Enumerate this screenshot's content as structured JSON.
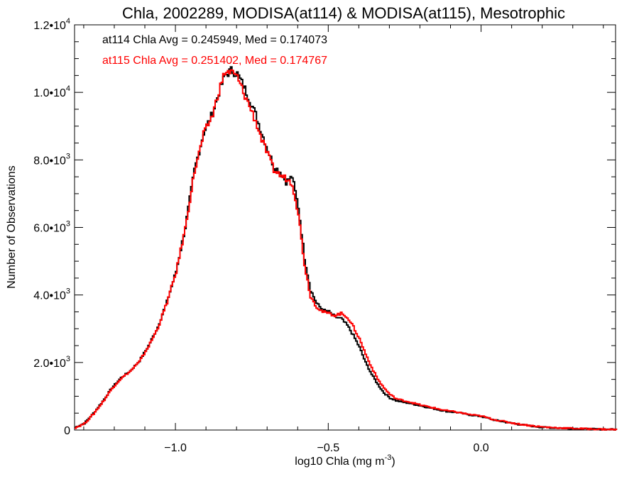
{
  "chart_data": {
    "type": "line",
    "title": "Chla, 2002289, MODISA(at114) & MODISA(at115), Mesotrophic",
    "xlabel": "log10 Chla (mg m",
    "xlabel_sup": "-3",
    "xlabel_close": ")",
    "ylabel": "Number of Observations",
    "xlim": [
      -1.33,
      0.44
    ],
    "ylim": [
      0,
      12000
    ],
    "xticks": [
      {
        "value": -1.0,
        "label": "−1.0"
      },
      {
        "value": -0.5,
        "label": "−0.5"
      },
      {
        "value": 0.0,
        "label": "0.0"
      }
    ],
    "yticks": [
      {
        "value": 0,
        "mant": "0",
        "exp": ""
      },
      {
        "value": 2000,
        "mant": "2.0•10",
        "exp": "3"
      },
      {
        "value": 4000,
        "mant": "4.0•10",
        "exp": "3"
      },
      {
        "value": 6000,
        "mant": "6.0•10",
        "exp": "3"
      },
      {
        "value": 8000,
        "mant": "8.0•10",
        "exp": "3"
      },
      {
        "value": 10000,
        "mant": "1.0•10",
        "exp": "4"
      },
      {
        "value": 12000,
        "mant": "1.2•10",
        "exp": "4"
      }
    ],
    "annotations": [
      {
        "text": "at114 Chla Avg = 0.245949, Med = 0.174073",
        "color": "#000000"
      },
      {
        "text": "at115 Chla Avg = 0.251402, Med = 0.174767",
        "color": "#ff0000"
      }
    ],
    "series": [
      {
        "color": "#000000",
        "x": [
          -1.33,
          -1.3,
          -1.27,
          -1.24,
          -1.21,
          -1.18,
          -1.15,
          -1.12,
          -1.09,
          -1.06,
          -1.03,
          -1.0,
          -0.97,
          -0.94,
          -0.91,
          -0.88,
          -0.86,
          -0.84,
          -0.82,
          -0.8,
          -0.78,
          -0.76,
          -0.74,
          -0.72,
          -0.7,
          -0.68,
          -0.66,
          -0.64,
          -0.62,
          -0.6,
          -0.58,
          -0.56,
          -0.54,
          -0.52,
          -0.5,
          -0.48,
          -0.46,
          -0.44,
          -0.42,
          -0.4,
          -0.38,
          -0.36,
          -0.34,
          -0.32,
          -0.3,
          -0.28,
          -0.26,
          -0.24,
          -0.22,
          -0.2,
          -0.16,
          -0.12,
          -0.08,
          -0.04,
          0.0,
          0.04,
          0.08,
          0.12,
          0.16,
          0.2,
          0.25,
          0.3,
          0.35,
          0.4,
          0.44
        ],
        "y": [
          80,
          200,
          500,
          850,
          1250,
          1550,
          1750,
          2050,
          2500,
          3050,
          3800,
          4700,
          6000,
          7700,
          8800,
          9400,
          10000,
          10500,
          10650,
          10550,
          10200,
          9800,
          9350,
          8800,
          8300,
          7800,
          7650,
          7350,
          7500,
          6600,
          5100,
          4150,
          3750,
          3550,
          3500,
          3350,
          3300,
          3100,
          2800,
          2450,
          2000,
          1650,
          1350,
          1100,
          950,
          870,
          830,
          800,
          760,
          720,
          640,
          560,
          520,
          450,
          400,
          300,
          230,
          170,
          120,
          80,
          60,
          45,
          30,
          20,
          15
        ]
      },
      {
        "color": "#ff0000",
        "x": [
          -1.33,
          -1.3,
          -1.27,
          -1.24,
          -1.21,
          -1.18,
          -1.15,
          -1.12,
          -1.09,
          -1.06,
          -1.03,
          -1.0,
          -0.97,
          -0.94,
          -0.91,
          -0.88,
          -0.86,
          -0.84,
          -0.82,
          -0.8,
          -0.78,
          -0.76,
          -0.74,
          -0.72,
          -0.7,
          -0.68,
          -0.66,
          -0.64,
          -0.62,
          -0.6,
          -0.58,
          -0.56,
          -0.54,
          -0.52,
          -0.5,
          -0.48,
          -0.46,
          -0.44,
          -0.42,
          -0.4,
          -0.38,
          -0.36,
          -0.34,
          -0.32,
          -0.3,
          -0.28,
          -0.26,
          -0.24,
          -0.22,
          -0.2,
          -0.16,
          -0.12,
          -0.08,
          -0.04,
          0.0,
          0.04,
          0.08,
          0.12,
          0.16,
          0.2,
          0.25,
          0.3,
          0.35,
          0.4,
          0.44
        ],
        "y": [
          70,
          190,
          480,
          830,
          1230,
          1530,
          1740,
          2030,
          2480,
          3020,
          3780,
          4680,
          5980,
          7650,
          8750,
          9350,
          10050,
          10600,
          10600,
          10450,
          10000,
          9600,
          9150,
          8600,
          8150,
          7700,
          7550,
          7450,
          7300,
          6400,
          4900,
          3950,
          3650,
          3500,
          3450,
          3400,
          3450,
          3350,
          3050,
          2700,
          2250,
          1850,
          1500,
          1250,
          1050,
          930,
          880,
          840,
          790,
          740,
          660,
          580,
          530,
          460,
          410,
          310,
          240,
          180,
          130,
          90,
          65,
          48,
          33,
          22,
          15
        ]
      }
    ]
  }
}
